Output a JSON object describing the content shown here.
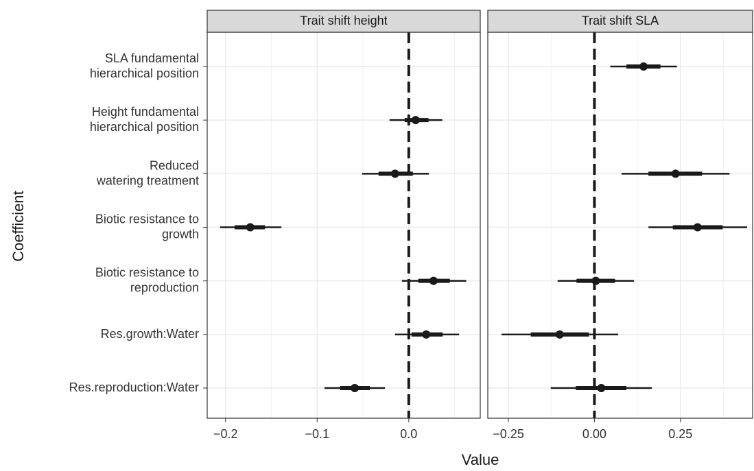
{
  "chart_data": {
    "type": "interval",
    "x_label": "Value",
    "y_label": "Coefficient",
    "categories": [
      "SLA fundamental\nhierarchical position",
      "Height fundamental\nhierarchical position",
      "Reduced\nwatering treatment",
      "Biotic resistance to\ngrowth",
      "Biotic resistance to\nreproduction",
      "Res.growth:Water",
      "Res.reproduction:Water"
    ],
    "color": "#1a1a1a",
    "grid": true,
    "vline": 0,
    "panels": [
      {
        "title": "Trait shift height",
        "xlim": [
          -0.22,
          0.078
        ],
        "xticks": [
          {
            "value": -0.2,
            "label": "−0.2"
          },
          {
            "value": -0.1,
            "label": "−0.1"
          },
          {
            "value": 0,
            "label": "0.0"
          }
        ],
        "values": [
          null,
          0.0075,
          -0.015,
          -0.173,
          0.027,
          0.019,
          -0.059
        ],
        "inner_low": [
          null,
          -0.0045,
          -0.033,
          -0.19,
          0.0104,
          0.003,
          -0.075
        ],
        "inner_high": [
          null,
          0.0216,
          0.0045,
          -0.157,
          0.0448,
          0.037,
          -0.0425
        ],
        "outer_low": [
          null,
          -0.021,
          -0.051,
          -0.206,
          -0.0075,
          -0.015,
          -0.092
        ],
        "outer_high": [
          null,
          0.0366,
          0.022,
          -0.139,
          0.0627,
          0.055,
          -0.026
        ]
      },
      {
        "title": "Trait shift SLA",
        "xlim": [
          -0.31,
          0.46
        ],
        "xticks": [
          {
            "value": -0.25,
            "label": "−0.25"
          },
          {
            "value": 0,
            "label": "0.00"
          },
          {
            "value": 0.25,
            "label": "0.25"
          }
        ],
        "values": [
          0.143,
          null,
          0.236,
          0.3,
          0.004,
          -0.101,
          0.02
        ],
        "inner_low": [
          0.093,
          null,
          0.157,
          0.228,
          -0.052,
          -0.185,
          -0.054
        ],
        "inner_high": [
          0.192,
          null,
          0.313,
          0.373,
          0.06,
          -0.016,
          0.093
        ],
        "outer_low": [
          0.046,
          null,
          0.079,
          0.157,
          -0.107,
          -0.27,
          -0.127
        ],
        "outer_high": [
          0.24,
          null,
          0.393,
          0.444,
          0.115,
          0.069,
          0.167
        ]
      }
    ]
  }
}
